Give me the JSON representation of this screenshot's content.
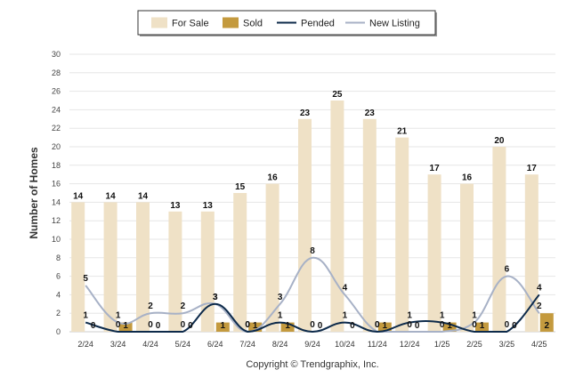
{
  "chart_data": {
    "type": "bar",
    "categories": [
      "2/24",
      "3/24",
      "4/24",
      "5/24",
      "6/24",
      "7/24",
      "8/24",
      "9/24",
      "10/24",
      "11/24",
      "12/24",
      "1/25",
      "2/25",
      "3/25",
      "4/25"
    ],
    "ylabel": "Number of Homes",
    "xlabel": "",
    "ylim": [
      0,
      30
    ],
    "yticks": [
      0,
      2,
      4,
      6,
      8,
      10,
      12,
      14,
      16,
      18,
      20,
      22,
      24,
      26,
      28,
      30
    ],
    "grid": true,
    "legend_position": "top-center",
    "series": [
      {
        "name": "For Sale",
        "kind": "bar",
        "color": "#efe1c6",
        "values": [
          14,
          14,
          14,
          13,
          13,
          15,
          16,
          23,
          25,
          23,
          21,
          17,
          16,
          20,
          17
        ]
      },
      {
        "name": "Sold",
        "kind": "bar",
        "color": "#c49a3e",
        "values": [
          0,
          1,
          0,
          0,
          1,
          1,
          1,
          0,
          0,
          1,
          0,
          1,
          1,
          0,
          2
        ]
      },
      {
        "name": "Pended",
        "kind": "line",
        "color": "#0d2a4a",
        "values": [
          1,
          0,
          0,
          0,
          3,
          0,
          1,
          0,
          1,
          0,
          1,
          1,
          0,
          0,
          4
        ]
      },
      {
        "name": "New Listing",
        "kind": "line",
        "color": "#a7b1c6",
        "values": [
          5,
          1,
          2,
          2,
          3,
          0,
          3,
          8,
          4,
          0,
          0,
          0,
          1,
          6,
          2
        ]
      }
    ]
  },
  "footer": {
    "credit": "Copyright © Trendgraphix, Inc."
  }
}
